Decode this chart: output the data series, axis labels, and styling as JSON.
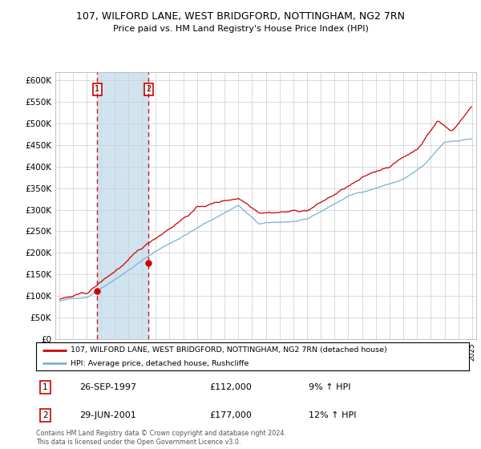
{
  "title": "107, WILFORD LANE, WEST BRIDGFORD, NOTTINGHAM, NG2 7RN",
  "subtitle": "Price paid vs. HM Land Registry's House Price Index (HPI)",
  "sale1_date_label": "26-SEP-1997",
  "sale1_price": 112000,
  "sale1_pct": "9% ↑ HPI",
  "sale2_date_label": "29-JUN-2001",
  "sale2_price": 177000,
  "sale2_pct": "12% ↑ HPI",
  "legend_line1": "107, WILFORD LANE, WEST BRIDGFORD, NOTTINGHAM, NG2 7RN (detached house)",
  "legend_line2": "HPI: Average price, detached house, Rushcliffe",
  "footer": "Contains HM Land Registry data © Crown copyright and database right 2024.\nThis data is licensed under the Open Government Licence v3.0.",
  "sale1_x": 1997.74,
  "sale2_x": 2001.49,
  "ylim_min": 0,
  "ylim_max": 620000,
  "xlim_min": 1994.7,
  "xlim_max": 2025.3,
  "red_color": "#cc0000",
  "blue_color": "#7ab0d4",
  "band_color": "#d0e4f0",
  "plot_bg": "#ffffff"
}
